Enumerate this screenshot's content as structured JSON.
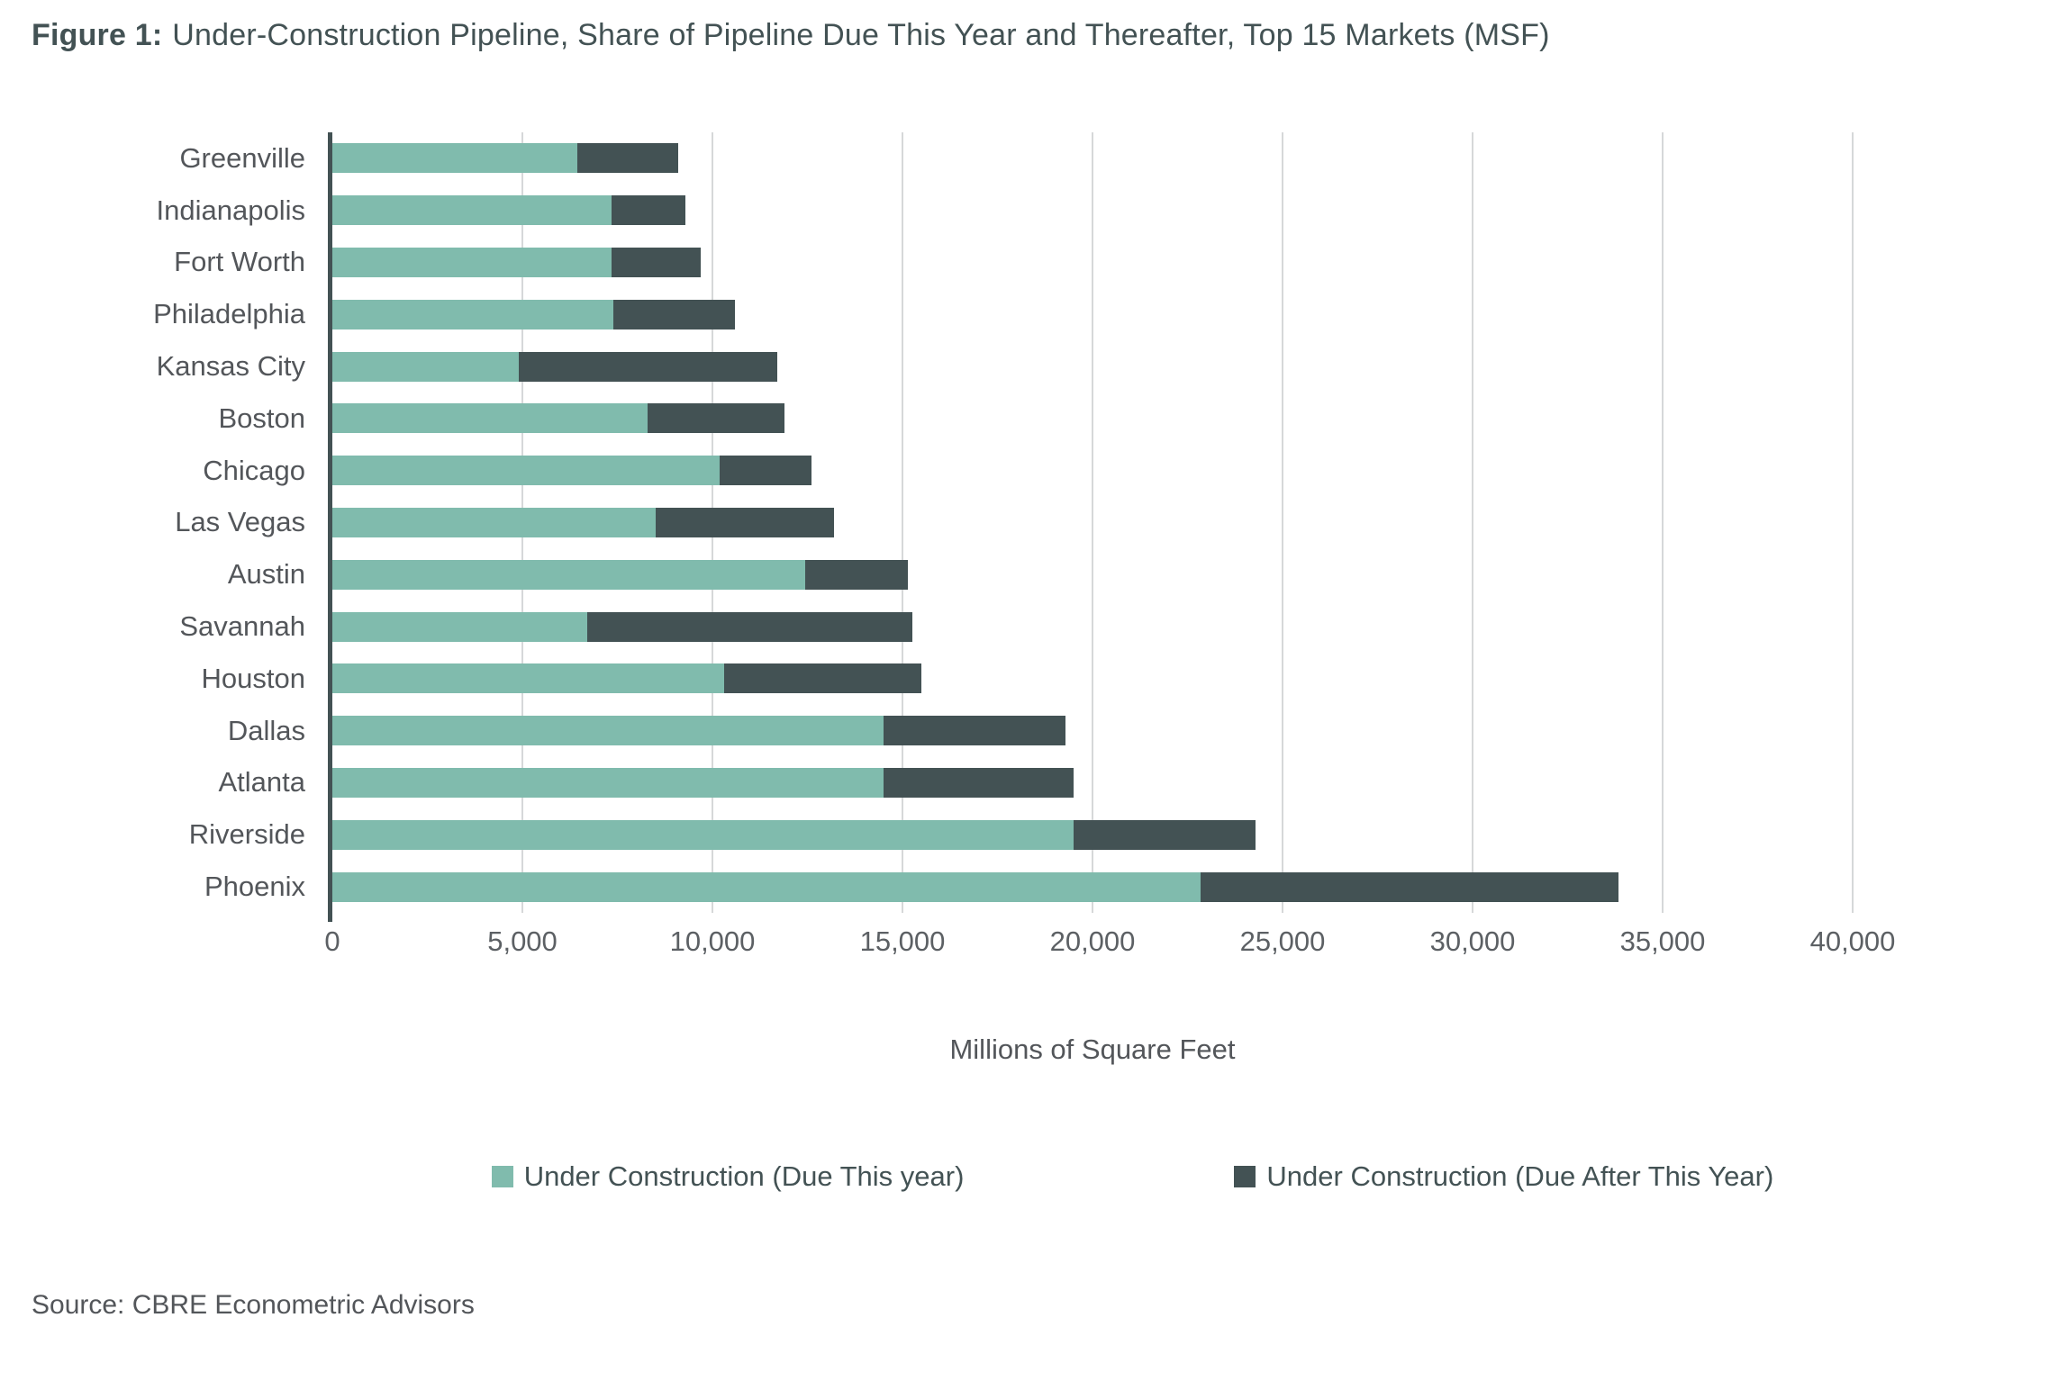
{
  "title": {
    "prefix": "Figure 1:",
    "text": "Under-Construction Pipeline, Share of Pipeline Due This Year and Thereafter, Top 15 Markets (MSF)"
  },
  "chart_data": {
    "type": "bar",
    "orientation": "horizontal",
    "stacked": true,
    "categories": [
      "Greenville",
      "Indianapolis",
      "Fort Worth",
      "Philadelphia",
      "Kansas City",
      "Boston",
      "Chicago",
      "Las Vegas",
      "Austin",
      "Savannah",
      "Houston",
      "Dallas",
      "Atlanta",
      "Riverside",
      "Phoenix"
    ],
    "series": [
      {
        "name": "Under Construction (Due This year)",
        "color": "#80BBAD",
        "values": [
          6450,
          7350,
          7350,
          7400,
          4900,
          8300,
          10200,
          8500,
          12450,
          6700,
          10300,
          14500,
          14500,
          19500,
          22850
        ]
      },
      {
        "name": "Under Construction (Due After This Year)",
        "color": "#435254",
        "values": [
          2650,
          1950,
          2350,
          3200,
          6800,
          3600,
          2400,
          4700,
          2700,
          8550,
          5200,
          4800,
          5000,
          4800,
          11000
        ]
      }
    ],
    "xlabel": "Millions of Square Feet",
    "xlim": [
      0,
      40000
    ],
    "xticks": [
      0,
      5000,
      10000,
      15000,
      20000,
      25000,
      30000,
      35000,
      40000
    ],
    "xtick_labels": [
      "0",
      "5,000",
      "10,000",
      "15,000",
      "20,000",
      "25,000",
      "30,000",
      "35,000",
      "40,000"
    ],
    "grid": "vertical-only",
    "legend_position": "bottom"
  },
  "source": "Source: CBRE Econometric Advisors"
}
